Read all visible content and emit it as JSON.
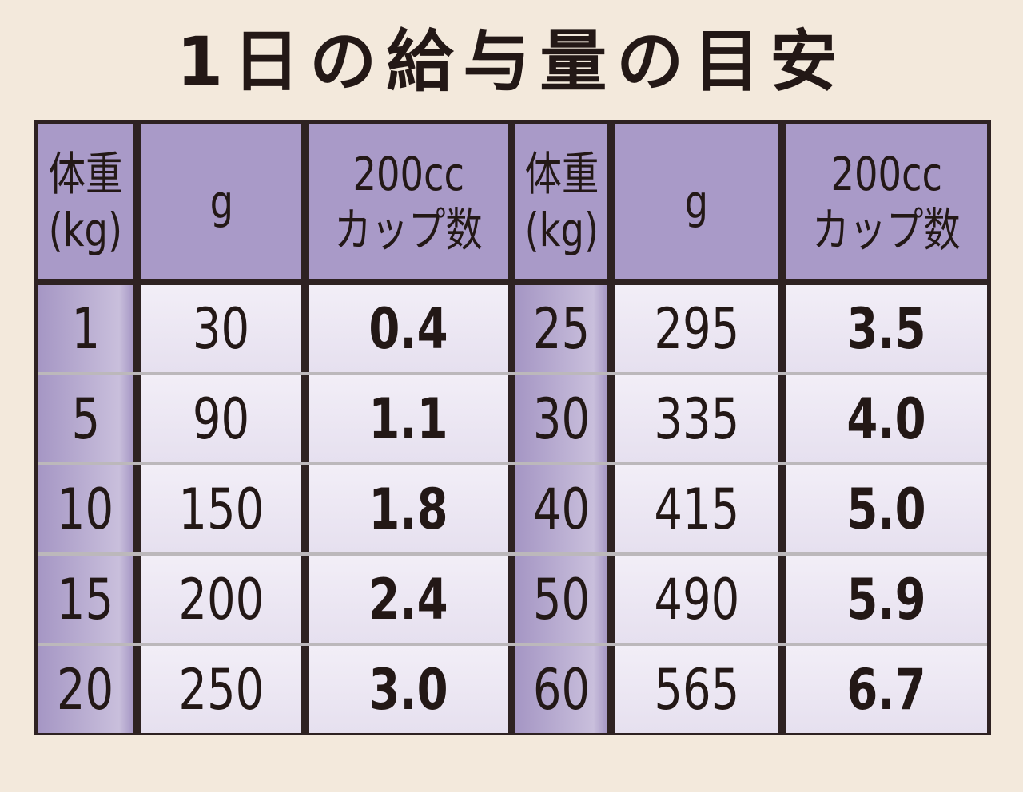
{
  "header": {
    "title": "1日の給与量の目安"
  },
  "table": {
    "columns": [
      [
        "体重",
        "(kg)"
      ],
      [
        "g"
      ],
      [
        "200cc",
        "カップ数"
      ],
      [
        "体重",
        "(kg)"
      ],
      [
        "g"
      ],
      [
        "200cc",
        "カップ数"
      ]
    ],
    "rows": [
      [
        "1",
        "30",
        "0.4",
        "25",
        "295",
        "3.5"
      ],
      [
        "5",
        "90",
        "1.1",
        "30",
        "335",
        "4.0"
      ],
      [
        "10",
        "150",
        "1.8",
        "40",
        "415",
        "5.0"
      ],
      [
        "15",
        "200",
        "2.4",
        "50",
        "490",
        "5.9"
      ],
      [
        "20",
        "250",
        "3.0",
        "60",
        "565",
        "6.7"
      ]
    ]
  }
}
